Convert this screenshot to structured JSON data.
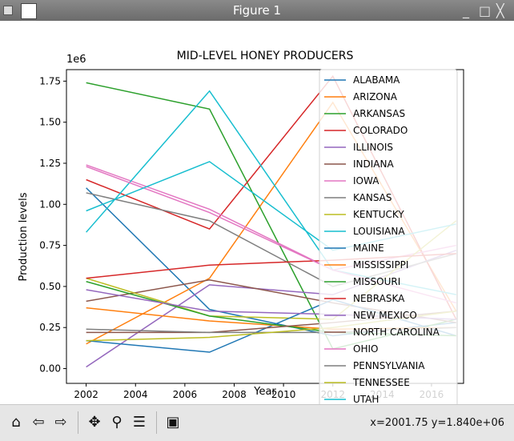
{
  "window": {
    "title": "Figure 1"
  },
  "toolbar": {
    "buttons": [
      {
        "name": "home-icon",
        "glyph": "⌂"
      },
      {
        "name": "back-icon",
        "glyph": "⇦"
      },
      {
        "name": "forward-icon",
        "glyph": "⇨"
      },
      {
        "name": "pan-icon",
        "glyph": "✥"
      },
      {
        "name": "zoom-icon",
        "glyph": "⚲"
      },
      {
        "name": "configure-subplots-icon",
        "glyph": "☰"
      },
      {
        "name": "save-icon",
        "glyph": "▣"
      }
    ],
    "coords": "x=2001.75 y=1.840e+06"
  },
  "chart_data": {
    "type": "line",
    "title": "MID-LEVEL HONEY PRODUCERS",
    "xlabel": "Year",
    "ylabel": "Production levels",
    "offset_text": "1e6",
    "xlim": [
      2001.2,
      2017.3
    ],
    "ylim": [
      -0.09,
      1.82
    ],
    "xticks": [
      2002,
      2004,
      2006,
      2008,
      2010,
      2012,
      2014,
      2016
    ],
    "xtick_labels": [
      "2002",
      "2004",
      "2006",
      "2008",
      "2010",
      "2012",
      "2014",
      "2016"
    ],
    "yticks": [
      0.0,
      0.25,
      0.5,
      0.75,
      1.0,
      1.25,
      1.5,
      1.75
    ],
    "ytick_labels": [
      "0.00",
      "0.25",
      "0.50",
      "0.75",
      "1.00",
      "1.25",
      "1.50",
      "1.75"
    ],
    "legend_position": "upper-right",
    "x": [
      2002,
      2007,
      2012,
      2017
    ],
    "series": [
      {
        "name": "ALABAMA",
        "color": "#1f77b4",
        "values": [
          1.1,
          0.36,
          0.2,
          0.28
        ]
      },
      {
        "name": "ARIZONA",
        "color": "#ff7f0e",
        "values": [
          0.15,
          0.55,
          1.62,
          0.35
        ]
      },
      {
        "name": "ARKANSAS",
        "color": "#2ca02c",
        "values": [
          1.74,
          1.58,
          0.12,
          0.3
        ]
      },
      {
        "name": "COLORADO",
        "color": "#d62728",
        "values": [
          1.15,
          0.85,
          1.78,
          0.3
        ]
      },
      {
        "name": "ILLINOIS",
        "color": "#9467bd",
        "values": [
          0.01,
          0.51,
          0.45,
          0.72
        ]
      },
      {
        "name": "INDIANA",
        "color": "#8c564b",
        "values": [
          0.41,
          0.54,
          0.4,
          0.28
        ]
      },
      {
        "name": "IOWA",
        "color": "#e377c2",
        "values": [
          1.24,
          0.97,
          0.6,
          0.75
        ]
      },
      {
        "name": "KANSAS",
        "color": "#7f7f7f",
        "values": [
          1.07,
          0.9,
          0.5,
          0.7
        ]
      },
      {
        "name": "KENTUCKY",
        "color": "#bcbd22",
        "values": [
          0.55,
          0.32,
          0.3,
          0.9
        ]
      },
      {
        "name": "LOUISIANA",
        "color": "#17becf",
        "values": [
          0.83,
          1.69,
          0.6,
          0.45
        ]
      },
      {
        "name": "MAINE",
        "color": "#1f77b4",
        "values": [
          0.17,
          0.1,
          0.42,
          0.2
        ]
      },
      {
        "name": "MISSISSIPPI",
        "color": "#ff7f0e",
        "values": [
          0.37,
          0.29,
          0.24,
          0.25
        ]
      },
      {
        "name": "MISSOURI",
        "color": "#2ca02c",
        "values": [
          0.53,
          0.32,
          0.22,
          0.2
        ]
      },
      {
        "name": "NEBRASKA",
        "color": "#d62728",
        "values": [
          0.55,
          0.63,
          0.66,
          0.7
        ]
      },
      {
        "name": "NEW MEXICO",
        "color": "#9467bd",
        "values": [
          0.48,
          0.35,
          0.33,
          0.3
        ]
      },
      {
        "name": "NORTH CAROLINA",
        "color": "#8c564b",
        "values": [
          0.22,
          0.22,
          0.28,
          0.35
        ]
      },
      {
        "name": "OHIO",
        "color": "#e377c2",
        "values": [
          1.23,
          0.95,
          0.6,
          0.4
        ]
      },
      {
        "name": "PENNSYLVANIA",
        "color": "#7f7f7f",
        "values": [
          0.24,
          0.22,
          0.22,
          0.25
        ]
      },
      {
        "name": "TENNESSEE",
        "color": "#bcbd22",
        "values": [
          0.17,
          0.19,
          0.25,
          0.35
        ]
      },
      {
        "name": "UTAH",
        "color": "#17becf",
        "values": [
          0.96,
          1.26,
          0.72,
          0.88
        ]
      }
    ]
  }
}
